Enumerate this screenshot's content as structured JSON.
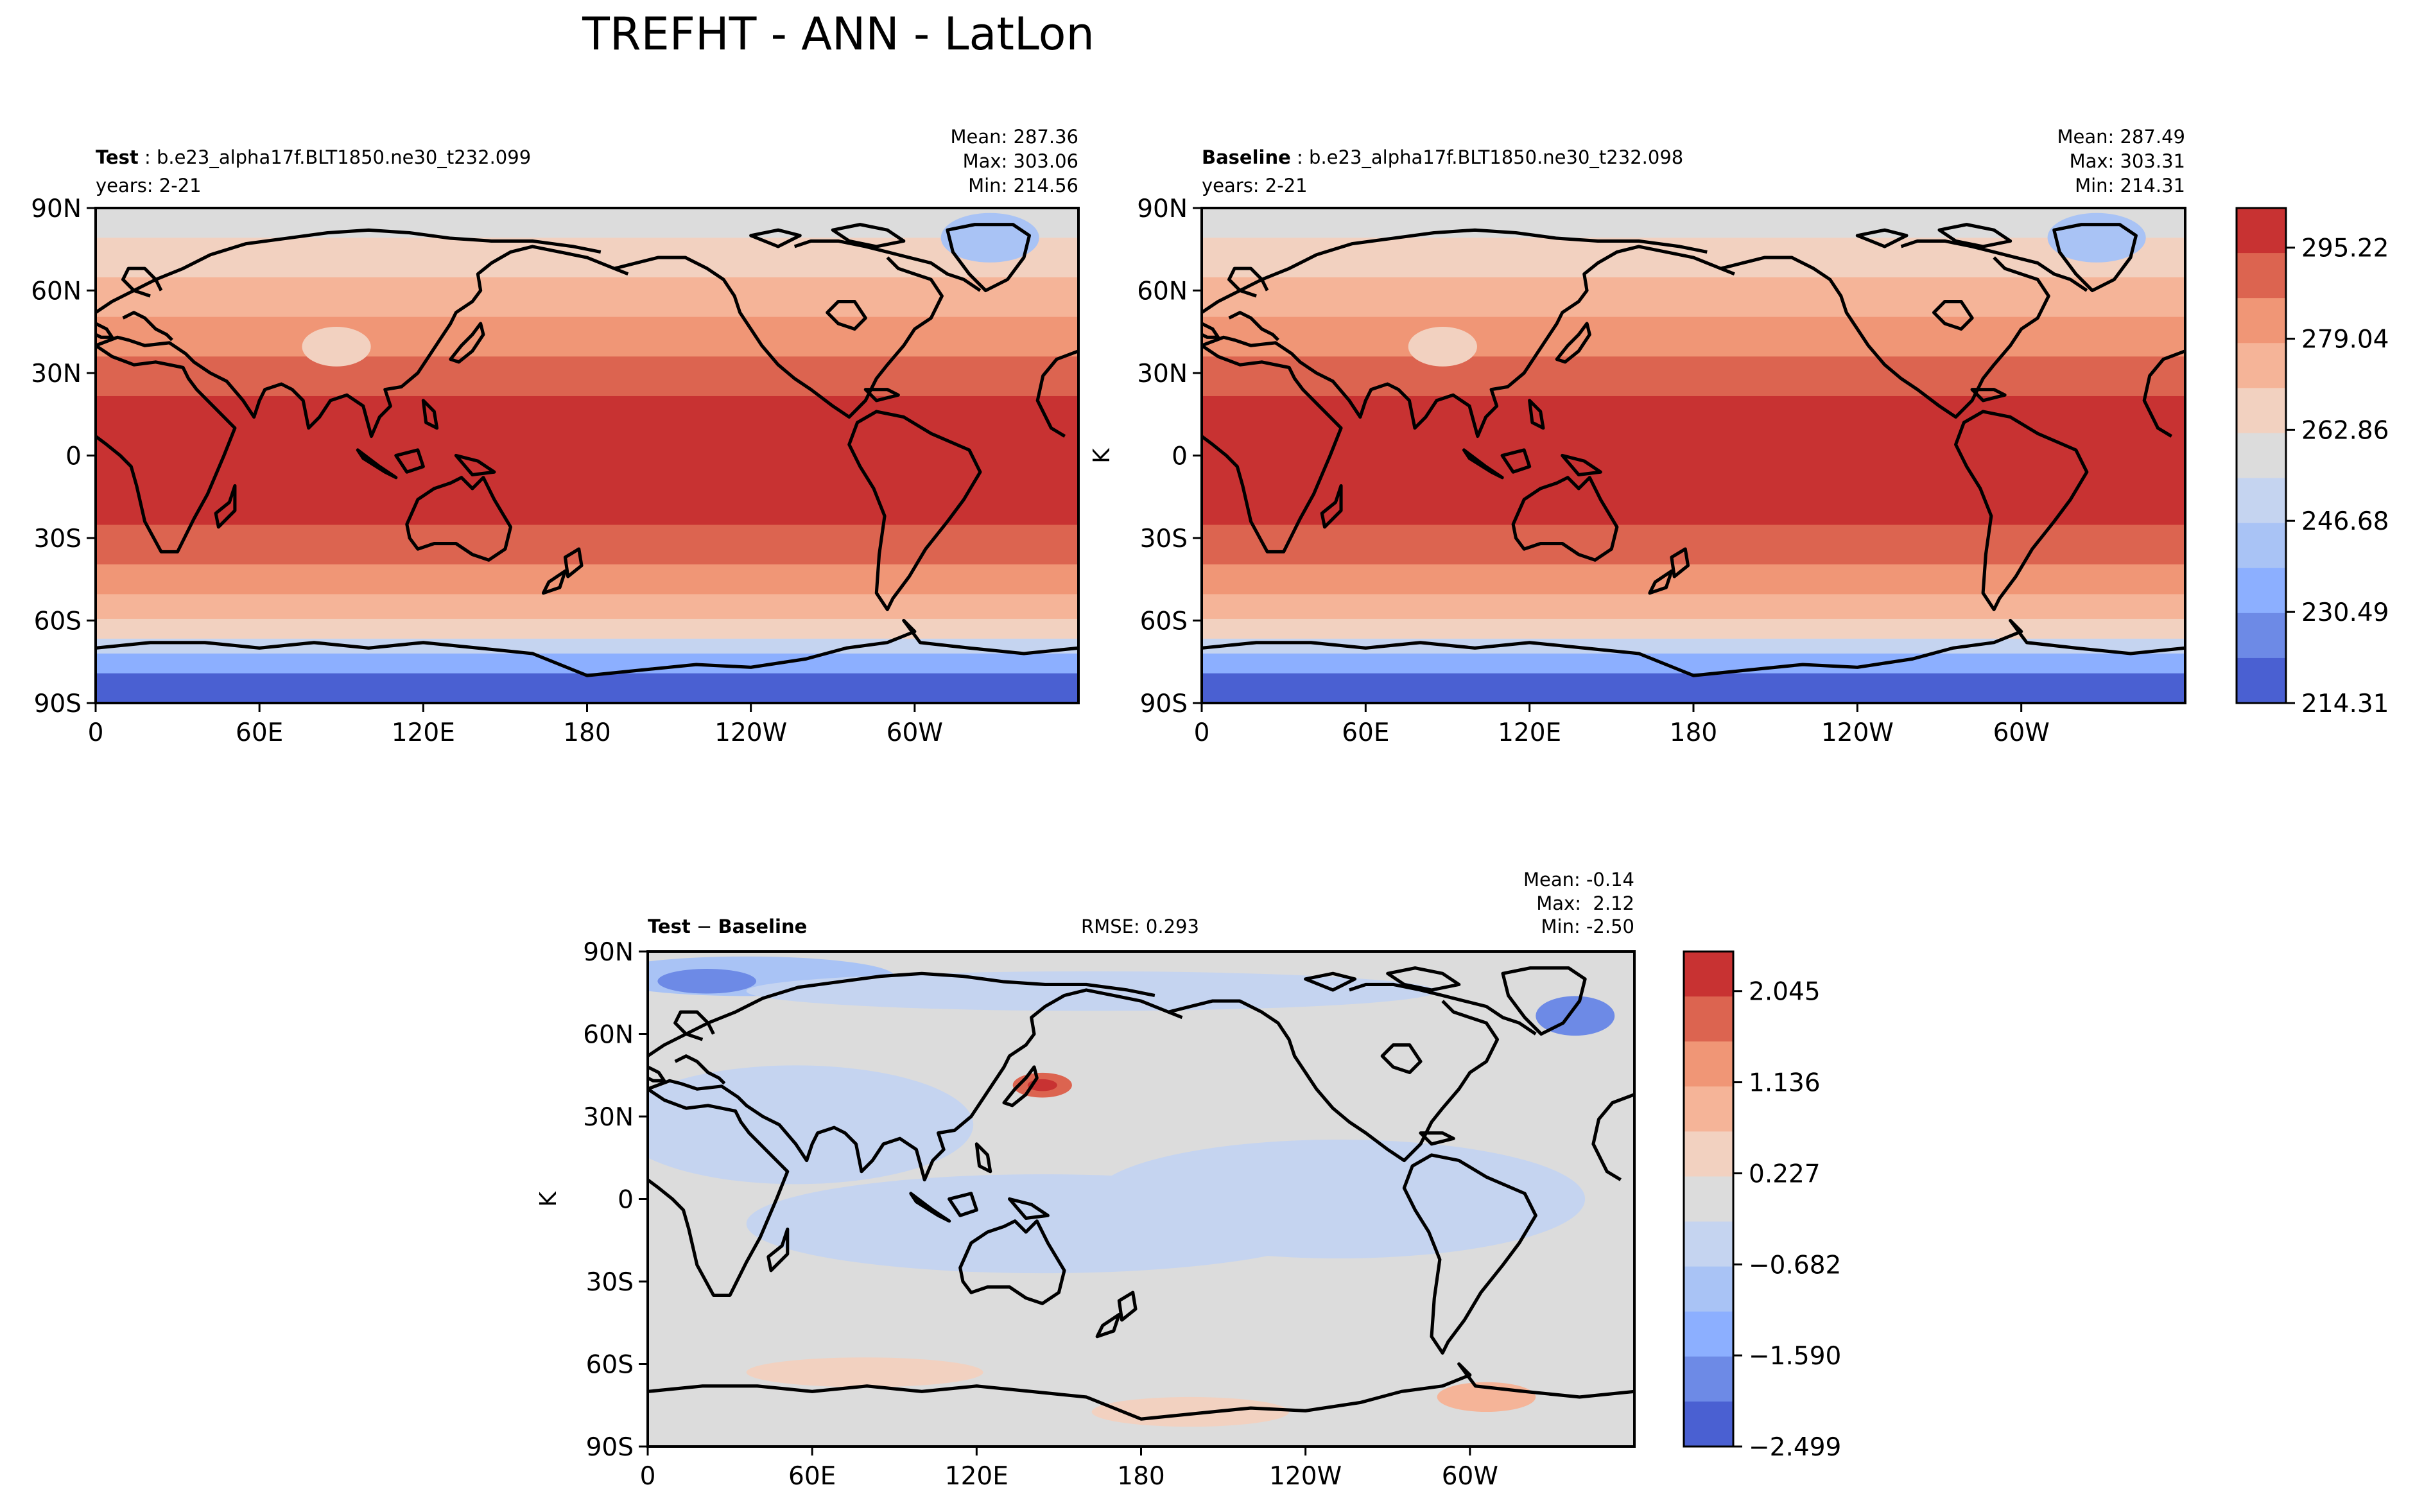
{
  "figure": {
    "title": "TREFHT - ANN - LatLon"
  },
  "chart_data": [
    {
      "type": "heatmap",
      "id": "test",
      "header_bold": "Test",
      "header_text": "b.e23_alpha17f.BLT1850.ne30_t232.099",
      "years": "years: 2-21",
      "stats": [
        "Mean: 287.36",
        "Max: 303.06",
        "Min: 214.56"
      ],
      "x_ticks": [
        "0",
        "60E",
        "120E",
        "180",
        "120W",
        "60W"
      ],
      "y_ticks": [
        "90N",
        "60N",
        "30N",
        "0",
        "30S",
        "60S",
        "90S"
      ],
      "xlim": [
        0,
        360
      ],
      "ylim": [
        -90,
        90
      ],
      "variable": "TREFHT",
      "units": "K",
      "mean": 287.36,
      "max": 303.06,
      "min": 214.56
    },
    {
      "type": "heatmap",
      "id": "baseline",
      "header_bold": "Baseline",
      "header_text": "b.e23_alpha17f.BLT1850.ne30_t232.098",
      "years": "years: 2-21",
      "stats": [
        "Mean: 287.49",
        "Max: 303.31",
        "Min: 214.31"
      ],
      "x_ticks": [
        "0",
        "60E",
        "120E",
        "180",
        "120W",
        "60W"
      ],
      "y_ticks": [
        "90N",
        "60N",
        "30N",
        "0",
        "30S",
        "60S",
        "90S"
      ],
      "xlim": [
        0,
        360
      ],
      "ylim": [
        -90,
        90
      ],
      "variable": "TREFHT",
      "units": "K",
      "mean": 287.49,
      "max": 303.31,
      "min": 214.31,
      "colorbar": {
        "label": "K",
        "tick_labels": [
          "295.22",
          "279.04",
          "262.86",
          "246.68",
          "230.49",
          "214.31"
        ],
        "tick_values": [
          295.22,
          279.04,
          262.86,
          246.68,
          230.49,
          214.31
        ],
        "levels_count": 11,
        "colors": [
          "#c83232",
          "#dc6450",
          "#f09676",
          "#f5b498",
          "#f2d1c0",
          "#dcdcdc",
          "#c5d4f0",
          "#a9c3f5",
          "#8cafff",
          "#6d8ae6",
          "#4a60d2"
        ]
      }
    },
    {
      "type": "heatmap",
      "id": "diff",
      "header_bold_a": "Test",
      "header_sep": " − ",
      "header_bold_b": "Baseline",
      "rmse": "RMSE: 0.293",
      "stats": [
        "Mean: -0.14",
        "Max:  2.12",
        "Min: -2.50"
      ],
      "x_ticks": [
        "0",
        "60E",
        "120E",
        "180",
        "120W",
        "60W"
      ],
      "y_ticks": [
        "90N",
        "60N",
        "30N",
        "0",
        "30S",
        "60S",
        "90S"
      ],
      "xlim": [
        0,
        360
      ],
      "ylim": [
        -90,
        90
      ],
      "units": "K",
      "mean": -0.14,
      "max": 2.12,
      "min": -2.5,
      "rmse_value": 0.293,
      "colorbar": {
        "label": "K",
        "tick_labels": [
          "2.045",
          "1.136",
          "0.227",
          "−0.682",
          "−1.590",
          "−2.499"
        ],
        "tick_values": [
          2.045,
          1.136,
          0.227,
          -0.682,
          -1.59,
          -2.499
        ],
        "levels_count": 11,
        "colors": [
          "#c83232",
          "#dc6450",
          "#f09676",
          "#f5b498",
          "#f2d1c0",
          "#dcdcdc",
          "#c5d4f0",
          "#a9c3f5",
          "#8cafff",
          "#6d8ae6",
          "#4a60d2"
        ]
      }
    }
  ]
}
